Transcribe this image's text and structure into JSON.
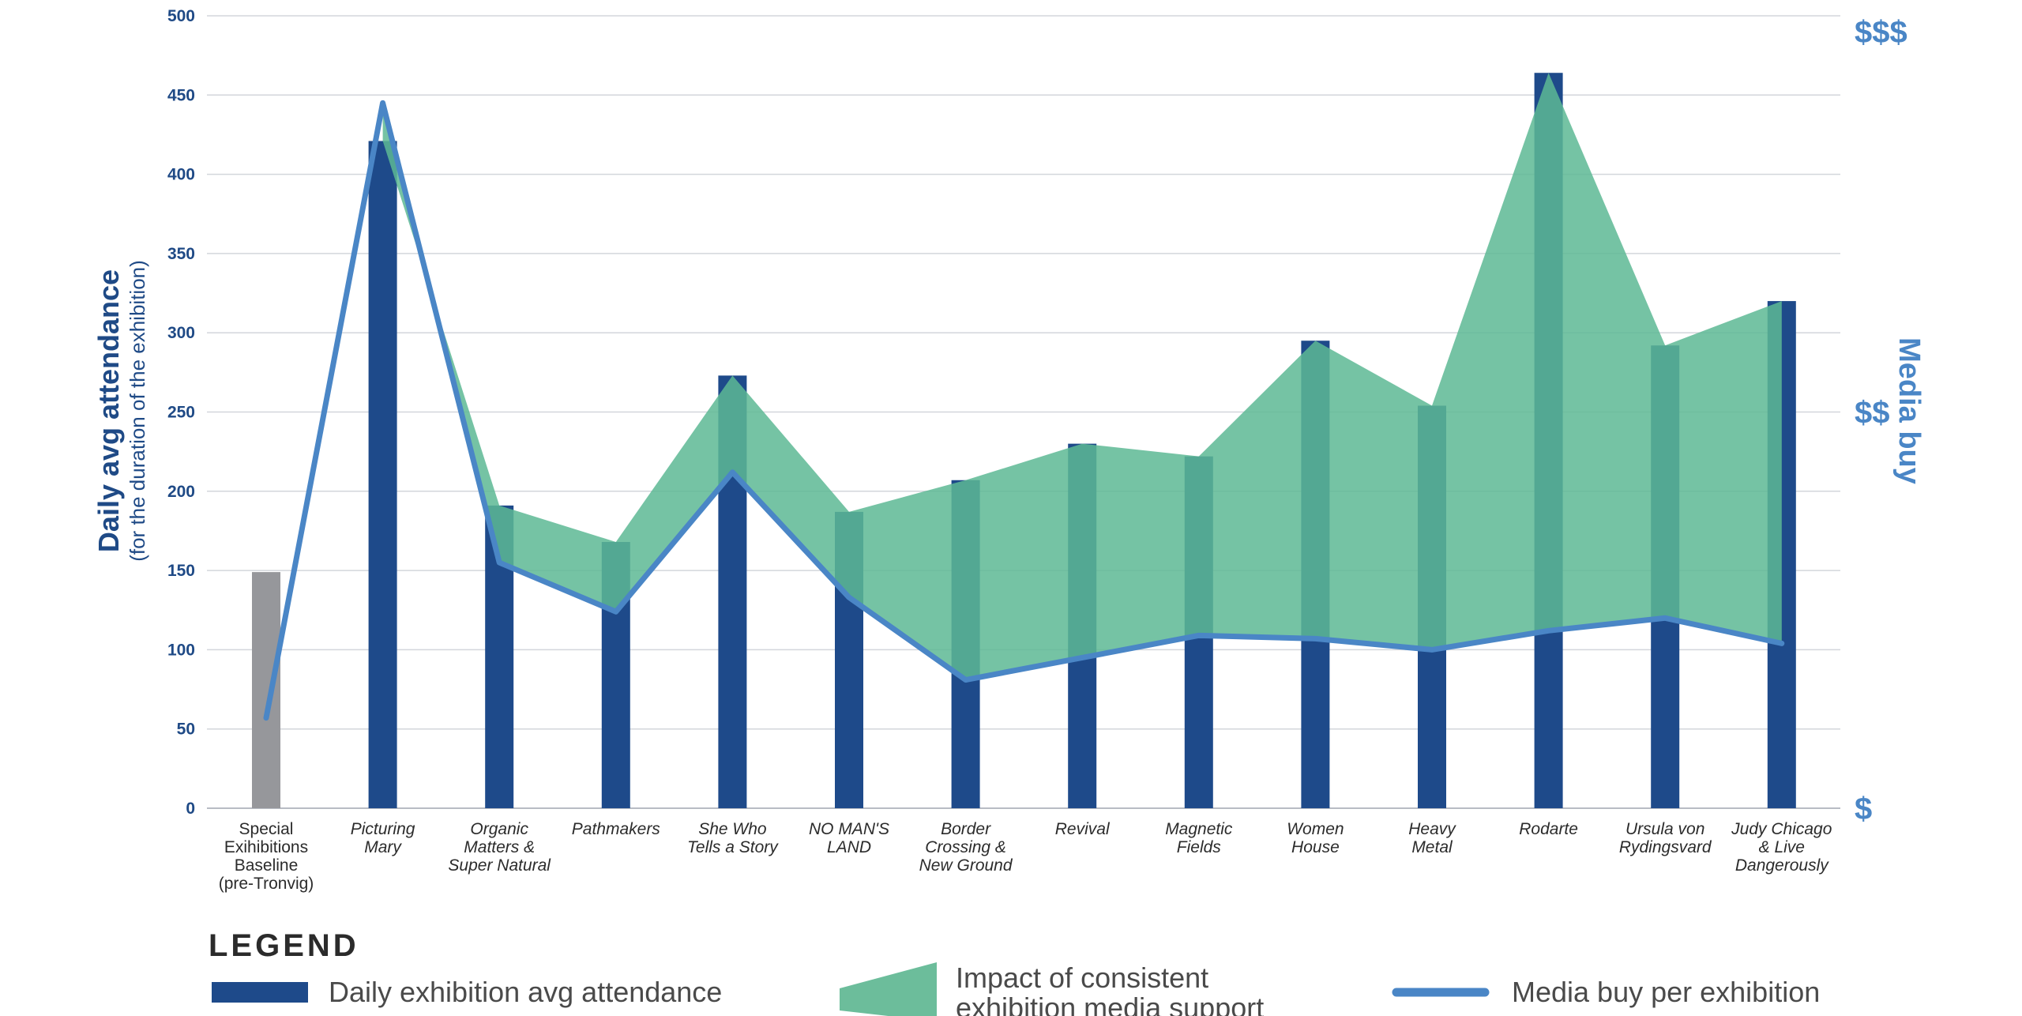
{
  "chart_data": {
    "type": "bar",
    "categories": [
      [
        "Special",
        "Exihibitions",
        "Baseline",
        "(pre-Tronvig)"
      ],
      [
        "Picturing",
        "Mary"
      ],
      [
        "Organic",
        "Matters &",
        "Super Natural"
      ],
      [
        "Pathmakers"
      ],
      [
        "She Who",
        "Tells a Story"
      ],
      [
        "NO MAN'S",
        "LAND"
      ],
      [
        "Border",
        "Crossing &",
        "New Ground"
      ],
      [
        "Revival"
      ],
      [
        "Magnetic",
        "Fields"
      ],
      [
        "Women",
        "House"
      ],
      [
        "Heavy",
        "Metal"
      ],
      [
        "Rodarte"
      ],
      [
        "Ursula von",
        "Rydingsvard"
      ],
      [
        "Judy Chicago",
        "& Live",
        "Dangerously"
      ]
    ],
    "category_italic": [
      false,
      true,
      true,
      true,
      true,
      true,
      true,
      true,
      true,
      true,
      true,
      true,
      true,
      true
    ],
    "ylim": [
      0,
      500
    ],
    "yticks": [
      0,
      50,
      100,
      150,
      200,
      250,
      300,
      350,
      400,
      450,
      500
    ],
    "ylabel": "Daily avg attendance",
    "ylabel_sub": "(for the duration of the exhibition)",
    "y2label": "Media buy",
    "y2ticks": [
      {
        "label": "$",
        "at": 0
      },
      {
        "label": "$$",
        "at": 250
      },
      {
        "label": "$$$",
        "at": 490
      }
    ],
    "grid": true,
    "series": [
      {
        "name": "Daily exhibition avg attendance",
        "kind": "bar",
        "color": "#1e4a8a",
        "baseline_color": "#96979b",
        "values": [
          149,
          421,
          191,
          168,
          273,
          187,
          207,
          230,
          222,
          295,
          254,
          464,
          292,
          320
        ]
      },
      {
        "name": "Media buy per exhibition",
        "kind": "line",
        "color": "#4a86c6",
        "values": [
          57,
          445,
          155,
          124,
          212,
          133,
          81,
          95,
          109,
          107,
          100,
          112,
          120,
          104
        ]
      },
      {
        "name": "Impact of consistent exhibition media support",
        "kind": "area_between",
        "color": "#5db894",
        "start_index": 1
      }
    ]
  },
  "legend": {
    "title": "LEGEND",
    "items": [
      {
        "kind": "bar",
        "label": "Daily exhibition avg attendance",
        "color": "#1e4a8a"
      },
      {
        "kind": "area",
        "label": [
          "Impact of consistent",
          "exhibition media support"
        ],
        "color": "#6cbd9b"
      },
      {
        "kind": "line",
        "label": "Media buy per exhibition",
        "color": "#4a86c6"
      }
    ]
  }
}
